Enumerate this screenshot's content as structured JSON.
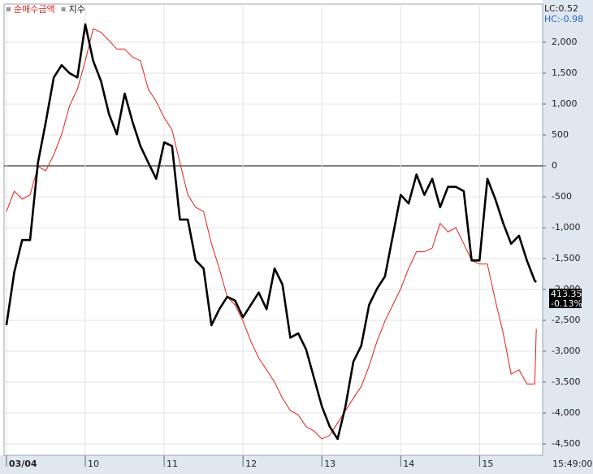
{
  "chart_data": {
    "type": "line",
    "lc_label": "LC:0.52",
    "hc_label": "HC:-0.98",
    "last_value": "413.35",
    "last_change": "-0.13%",
    "time_label": "15:49:00",
    "x": [
      0,
      0.1,
      0.2,
      0.3,
      0.4,
      0.5,
      0.6,
      0.7,
      0.8,
      0.9,
      1,
      1.1,
      1.2,
      1.3,
      1.4,
      1.5,
      1.6,
      1.7,
      1.8,
      1.9,
      2,
      2.1,
      2.2,
      2.3,
      2.4,
      2.5,
      2.6,
      2.7,
      2.8,
      2.9,
      3,
      3.1,
      3.2,
      3.3,
      3.4,
      3.5,
      3.6,
      3.7,
      3.8,
      3.9,
      4,
      4.1,
      4.2,
      4.3,
      4.4,
      4.5,
      4.6,
      4.7,
      4.8,
      4.9,
      5,
      5.1,
      5.2,
      5.3,
      5.4,
      5.5,
      5.6,
      5.7,
      5.8,
      5.9,
      6,
      6.1,
      6.2,
      6.3,
      6.4,
      6.5,
      6.6,
      6.7,
      6.72
    ],
    "series": [
      {
        "name": "순매수금액",
        "color": "#e0201a",
        "values": [
          -740,
          -410,
          -540,
          -470,
          -10,
          -80,
          180,
          510,
          970,
          1240,
          1700,
          2220,
          2160,
          2030,
          1890,
          1890,
          1760,
          1700,
          1240,
          1040,
          780,
          580,
          50,
          -470,
          -670,
          -740,
          -1260,
          -1660,
          -2120,
          -2250,
          -2510,
          -2840,
          -3110,
          -3300,
          -3500,
          -3760,
          -3960,
          -4030,
          -4220,
          -4290,
          -4420,
          -4360,
          -4160,
          -3960,
          -3760,
          -3570,
          -3240,
          -2840,
          -2510,
          -2250,
          -1990,
          -1660,
          -1390,
          -1390,
          -1330,
          -930,
          -1070,
          -1000,
          -1260,
          -1530,
          -1590,
          -1590,
          -2180,
          -2710,
          -3370,
          -3300,
          -3530,
          -3530,
          -2640
        ]
      },
      {
        "name": "지수",
        "color": "#000000",
        "values": [
          -2580,
          -1720,
          -1200,
          -1200,
          50,
          710,
          1430,
          1630,
          1500,
          1430,
          2290,
          1700,
          1370,
          840,
          510,
          1170,
          710,
          320,
          50,
          -210,
          380,
          320,
          -870,
          -870,
          -1530,
          -1660,
          -2580,
          -2320,
          -2120,
          -2180,
          -2450,
          -2250,
          -2050,
          -2320,
          -1660,
          -1920,
          -2780,
          -2710,
          -2970,
          -3430,
          -3890,
          -4220,
          -4420,
          -3890,
          -3170,
          -2910,
          -2250,
          -1990,
          -1790,
          -1130,
          -470,
          -610,
          -140,
          -470,
          -210,
          -670,
          -340,
          -340,
          -410,
          -1530,
          -1530,
          -210,
          -540,
          -930,
          -1260,
          -1130,
          -1530,
          -1860,
          -1880
        ]
      }
    ],
    "xlim": [
      -0.03,
      6.8
    ],
    "xticks": [
      {
        "value": 0,
        "label": "03/04"
      },
      {
        "value": 1,
        "label": "10"
      },
      {
        "value": 2,
        "label": "11"
      },
      {
        "value": 3,
        "label": "12"
      },
      {
        "value": 4,
        "label": "13"
      },
      {
        "value": 5,
        "label": "14"
      },
      {
        "value": 6,
        "label": "15"
      }
    ],
    "ylim": [
      -4684,
      2618
    ],
    "yticks": [
      {
        "value": 2000,
        "label": "2,000"
      },
      {
        "value": 1500,
        "label": "1,500"
      },
      {
        "value": 1000,
        "label": "1,000"
      },
      500,
      0,
      -500,
      {
        "value": -1000,
        "label": "-1,000"
      },
      {
        "value": -1500,
        "label": "-1,500"
      },
      {
        "value": -2000,
        "label": "-2,000"
      },
      {
        "value": -2500,
        "label": "-2,500"
      },
      {
        "value": -3000,
        "label": "-3,000"
      },
      {
        "value": -3500,
        "label": "-3,500"
      },
      {
        "value": -4000,
        "label": "-4,000"
      },
      {
        "value": -4500,
        "label": "-4,500"
      }
    ],
    "grid": true
  }
}
